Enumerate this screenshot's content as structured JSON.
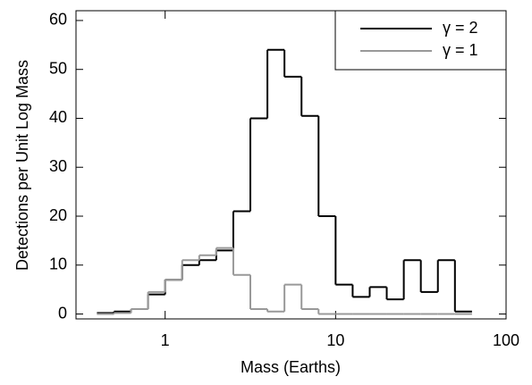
{
  "chart_data": {
    "type": "histogram",
    "x_label": "Mass (Earths)",
    "y_label": "Detections per Unit Log Mass",
    "bins": [
      0.398,
      0.501,
      0.631,
      0.794,
      1,
      1.259,
      1.585,
      1.995,
      2.512,
      3.162,
      3.981,
      5.012,
      6.31,
      7.943,
      10,
      12.59,
      15.85,
      19.95,
      25.12,
      31.62,
      39.81,
      50.12,
      63.1
    ],
    "series": [
      {
        "name": "γ = 2",
        "color": "#000000",
        "values": [
          0.2,
          0.5,
          1,
          4,
          7,
          10,
          11,
          13,
          21,
          40,
          54,
          48.5,
          40.5,
          20,
          6,
          3.5,
          5.5,
          3,
          11,
          4.5,
          11,
          0.5
        ]
      },
      {
        "name": "γ = 1",
        "color": "#999999",
        "values": [
          0,
          0.2,
          1,
          4.5,
          7,
          11,
          12,
          13.5,
          8,
          1,
          0.5,
          6,
          1,
          0,
          0,
          0,
          0,
          0,
          0,
          0,
          0,
          0
        ]
      }
    ],
    "xscale": "log",
    "xlim": [
      0.3,
      100
    ],
    "xticks": [
      1,
      10,
      100
    ],
    "ylim": [
      -1,
      62
    ],
    "yticks": [
      0,
      10,
      20,
      30,
      40,
      50,
      60
    ],
    "legend": "upper right"
  }
}
